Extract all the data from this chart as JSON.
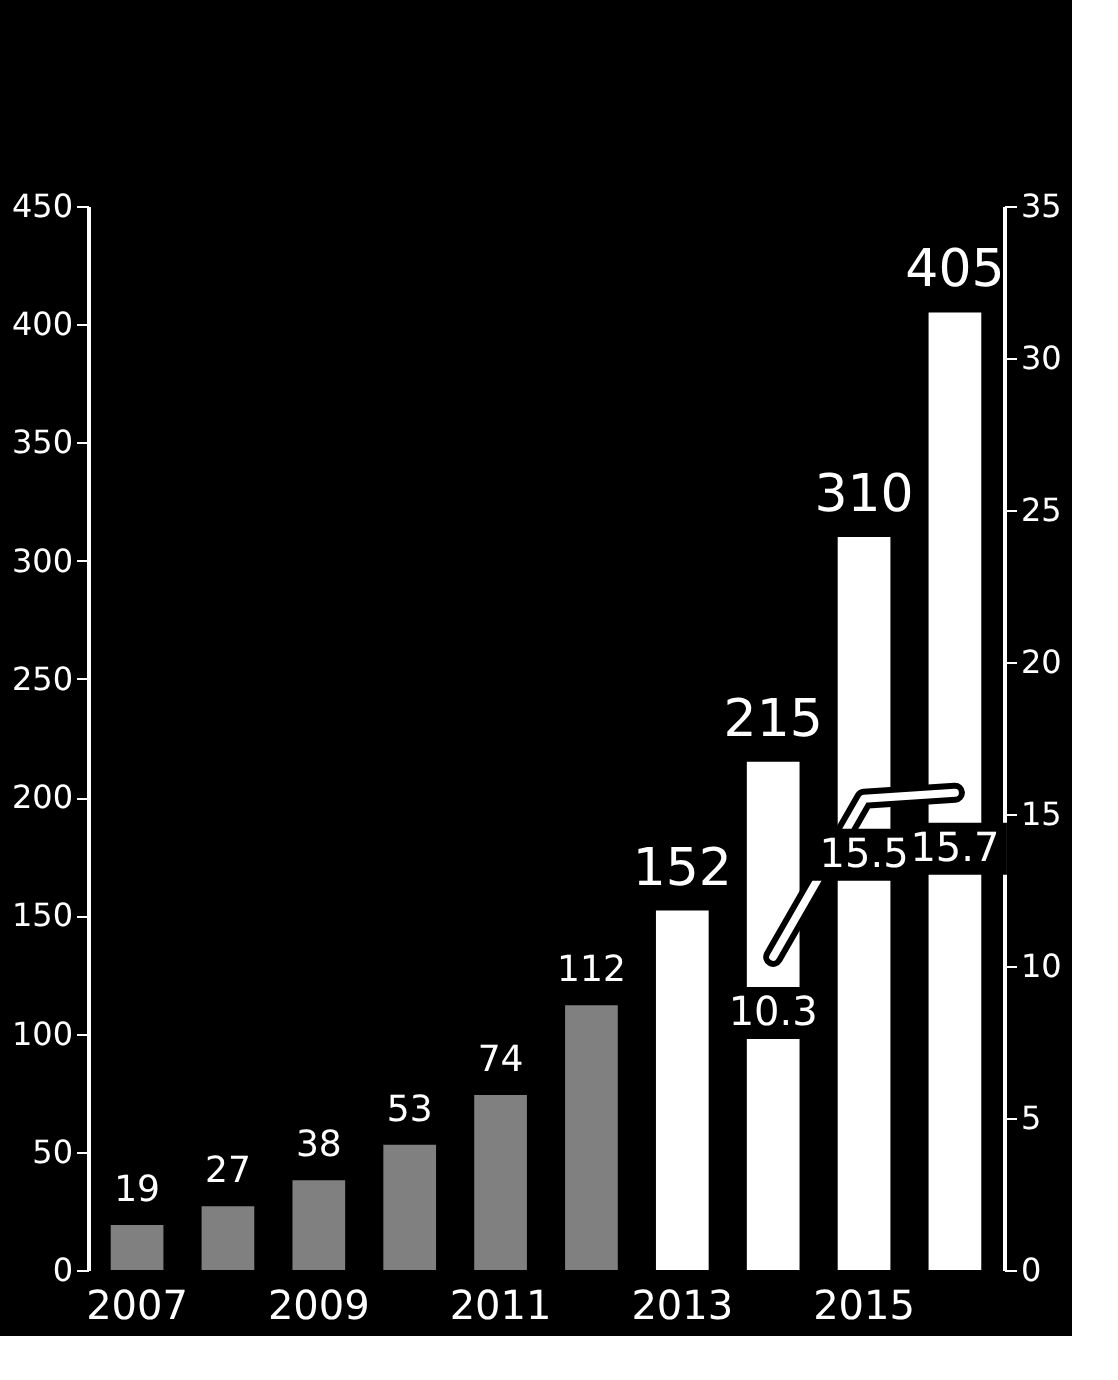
{
  "chart_data": {
    "type": "bar",
    "categories": [
      "2007",
      null,
      "2009",
      null,
      "2011",
      null,
      "2013",
      null,
      "2015",
      null
    ],
    "series": [
      {
        "values": [
          19,
          27,
          38,
          53,
          74,
          112,
          152,
          215,
          310,
          405
        ],
        "colors": [
          "#808080",
          "#808080",
          "#808080",
          "#808080",
          "#808080",
          "#808080",
          "#ffffff",
          "#ffffff",
          "#ffffff",
          "#ffffff"
        ]
      },
      {
        "type": "line",
        "axis": "y2",
        "color": "#ffffff",
        "values": [
          null,
          null,
          null,
          null,
          null,
          null,
          null,
          10.3,
          15.5,
          15.7
        ]
      }
    ],
    "data_labels": true,
    "ylim": [
      0,
      450
    ],
    "yticks": [
      0,
      50,
      100,
      150,
      200,
      250,
      300,
      350,
      400,
      450
    ],
    "y2lim": [
      0,
      35
    ],
    "y2ticks": [
      0,
      5,
      10,
      15,
      20,
      25,
      30,
      35
    ],
    "grid": false
  }
}
